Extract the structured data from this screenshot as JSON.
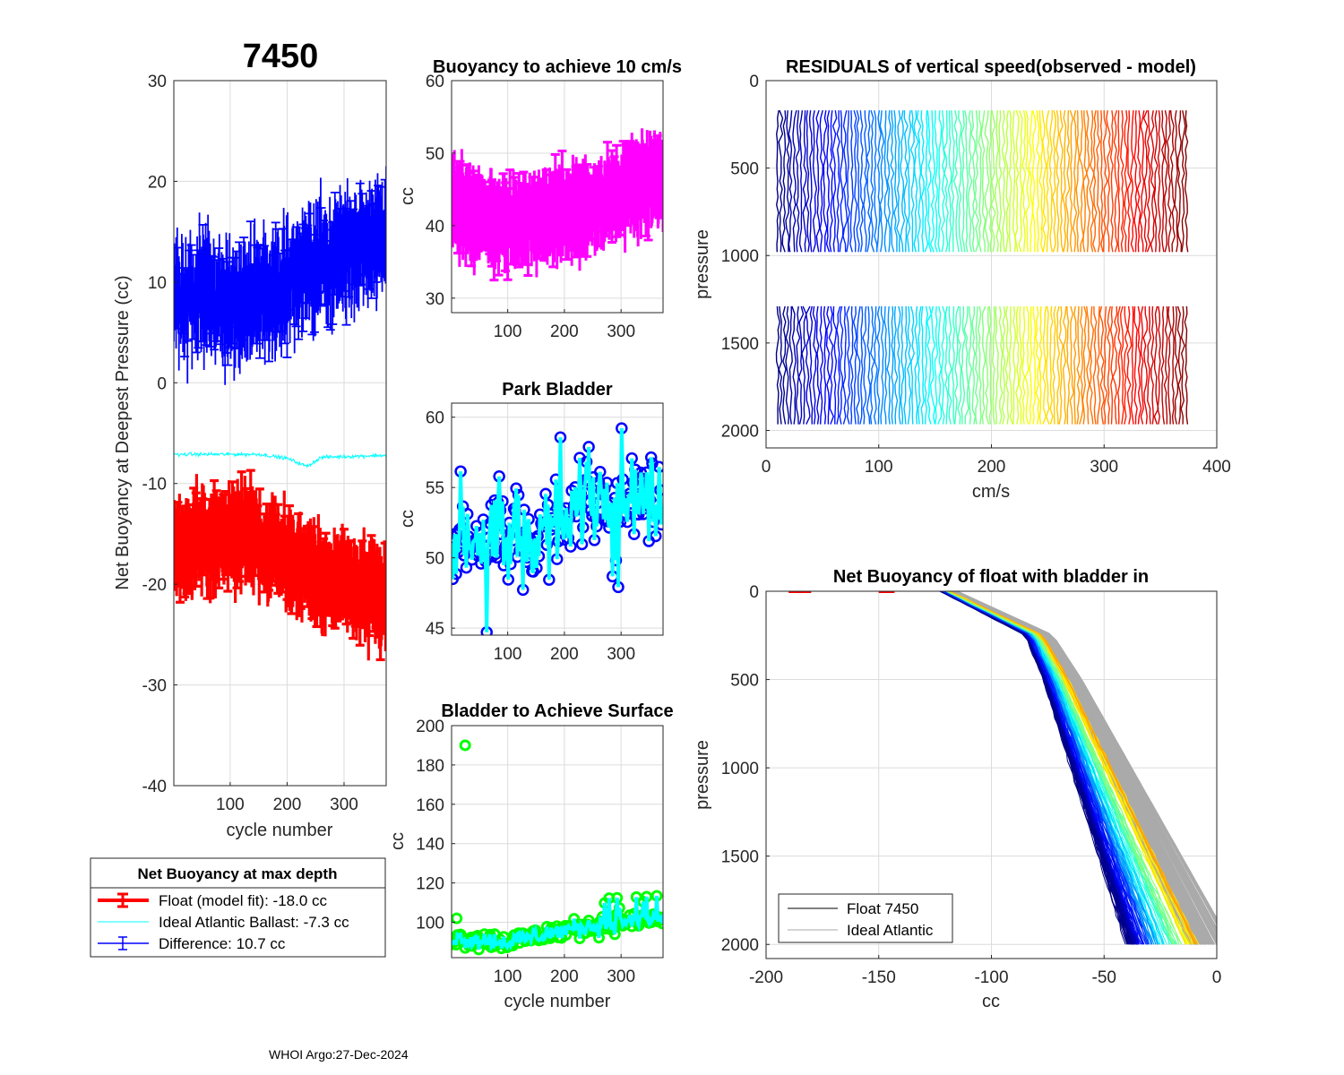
{
  "figure": {
    "float_id": "7450",
    "footer": "WHOI Argo:27-Dec-2024"
  },
  "colors": {
    "float_fit": "#ff0000",
    "ideal": "#00ffff",
    "difference": "#0000ff",
    "buoyancy10": "#ff00ff",
    "park_marker": "#0000ff",
    "park_line": "#00ffff",
    "surface_marker": "#00ff00",
    "surface_line": "#00ffff",
    "ideal_gray": "#aaaaaa"
  },
  "legend_main": {
    "title": "Net Buoyancy at max depth",
    "items": [
      {
        "label": "Float (model fit): -18.0 cc"
      },
      {
        "label": "Ideal Atlantic Ballast:  -7.3 cc"
      },
      {
        "label": "Difference:  10.7 cc"
      }
    ]
  },
  "legend_profile": {
    "items": [
      {
        "label": "Float 7450"
      },
      {
        "label": "Ideal Atlantic"
      }
    ]
  },
  "chart_data": [
    {
      "id": "net-buoyancy",
      "type": "line",
      "title": "",
      "xlabel": "cycle number",
      "ylabel": "Net Buoyancy at Deepest Pressure (cc)",
      "xlim": [
        1,
        374
      ],
      "ylim": [
        -40,
        30
      ],
      "xticks": [
        "100",
        "200",
        "300"
      ],
      "yticks": [
        "-40",
        "-30",
        "-20",
        "-10",
        "0",
        "10",
        "20",
        "30"
      ],
      "series": [
        {
          "name": "Float (model fit)",
          "trend": [
            [
              1,
              -16.5
            ],
            [
              120,
              -15.0
            ],
            [
              200,
              -17.5
            ],
            [
              300,
              -20.0
            ],
            [
              374,
              -21.5
            ]
          ],
          "errorbar": 3.2
        },
        {
          "name": "Ideal Atlantic Ballast",
          "trend": [
            [
              1,
              -7.1
            ],
            [
              150,
              -7.1
            ],
            [
              200,
              -7.5
            ],
            [
              235,
              -8.3
            ],
            [
              260,
              -7.4
            ],
            [
              374,
              -7.2
            ]
          ]
        },
        {
          "name": "Difference",
          "trend": [
            [
              1,
              9.0
            ],
            [
              120,
              8.0
            ],
            [
              200,
              10.0
            ],
            [
              300,
              13.0
            ],
            [
              374,
              15.0
            ]
          ],
          "errorbar": 4.0
        }
      ]
    },
    {
      "id": "buoyancy-10cms",
      "type": "line",
      "title": "Buoyancy to achieve 10 cm/s",
      "xlabel": "",
      "ylabel": "cc",
      "xlim": [
        1,
        374
      ],
      "ylim": [
        28,
        60
      ],
      "xticks": [
        "100",
        "200",
        "300"
      ],
      "yticks": [
        "30",
        "40",
        "50",
        "60"
      ],
      "series": [
        {
          "name": "Buoyancy",
          "trend": [
            [
              1,
              43.0
            ],
            [
              100,
              40.0
            ],
            [
              200,
              42.0
            ],
            [
              300,
              44.0
            ],
            [
              374,
              47.0
            ]
          ],
          "errorbar": 4.5
        }
      ]
    },
    {
      "id": "park-bladder",
      "type": "line",
      "title": "Park Bladder",
      "xlabel": "",
      "ylabel": "cc",
      "xlim": [
        1,
        374
      ],
      "ylim": [
        44.5,
        61
      ],
      "xticks": [
        "100",
        "200",
        "300"
      ],
      "yticks": [
        "45",
        "50",
        "55",
        "60"
      ],
      "series": [
        {
          "name": "Park Bladder",
          "trend": [
            [
              1,
              51.0
            ],
            [
              100,
              51.0
            ],
            [
              200,
              52.5
            ],
            [
              250,
              55.0
            ],
            [
              374,
              54.0
            ]
          ]
        }
      ]
    },
    {
      "id": "bladder-surface",
      "type": "line",
      "title": "Bladder to Achieve Surface",
      "xlabel": "cycle number",
      "ylabel": "cc",
      "xlim": [
        1,
        374
      ],
      "ylim": [
        82,
        200
      ],
      "xticks": [
        "100",
        "200",
        "300"
      ],
      "yticks": [
        "100",
        "120",
        "140",
        "160",
        "180",
        "200"
      ],
      "series": [
        {
          "name": "Bladder Surface",
          "trend": [
            [
              1,
              92.0
            ],
            [
              100,
              90.0
            ],
            [
              200,
              96.0
            ],
            [
              300,
              100.0
            ],
            [
              374,
              102.0
            ]
          ],
          "outliers": [
            [
              10,
              102
            ],
            [
              25,
              190
            ]
          ]
        }
      ]
    },
    {
      "id": "residuals",
      "type": "line",
      "title": "RESIDUALS of vertical speed(observed - model)",
      "xlabel": "cm/s",
      "ylabel": "pressure",
      "xlim": [
        0,
        400
      ],
      "ylim": [
        0,
        2100
      ],
      "xticks": [
        "0",
        "100",
        "200",
        "300",
        "400"
      ],
      "yticks": [
        "0",
        "500",
        "1000",
        "1500",
        "2000"
      ],
      "profile_cycles": [
        10,
        374
      ],
      "depth_ranges": [
        [
          170,
          1020
        ],
        [
          1290,
          2000
        ]
      ]
    },
    {
      "id": "net-buoyancy-profile",
      "type": "line",
      "title": "Net Buoyancy of float with bladder in",
      "xlabel": "cc",
      "ylabel": "pressure",
      "xlim": [
        -200,
        0
      ],
      "ylim": [
        0,
        2080
      ],
      "xticks": [
        "-200",
        "-150",
        "-100",
        "-50",
        "0"
      ],
      "yticks": [
        "0",
        "500",
        "1000",
        "1500",
        "2000"
      ],
      "profile_shape": [
        [
          -120,
          0
        ],
        [
          -80,
          250
        ],
        [
          -70,
          500
        ],
        [
          -20,
          2000
        ]
      ]
    }
  ]
}
